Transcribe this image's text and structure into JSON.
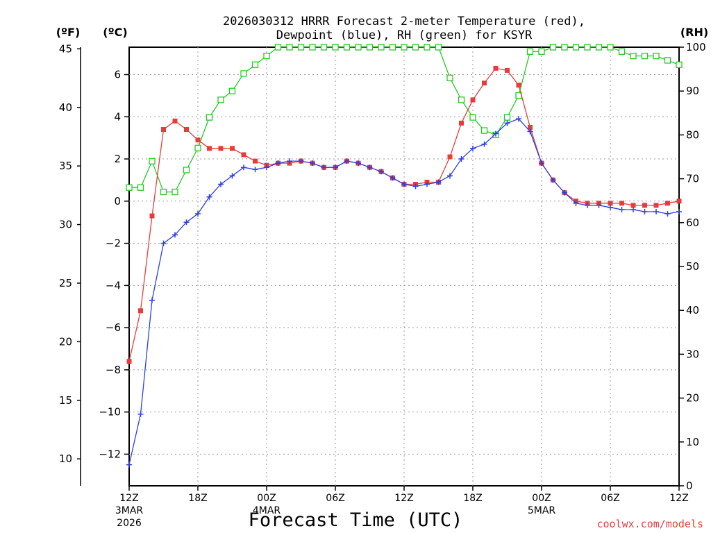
{
  "chart_data": {
    "type": "line",
    "title_line1": "2026030312 HRRR Forecast 2-meter Temperature (red),",
    "title_line2": "Dewpoint (blue), RH (green) for KSYR",
    "xlabel": "Forecast Time (UTC)",
    "credit": "coolwx.com/models",
    "unit_labels": {
      "fahrenheit": "(ºF)",
      "celsius": "(ºC)",
      "rh": "(RH)"
    },
    "x_ticks": [
      {
        "hour": 0,
        "label": "12Z",
        "sub1": "3MAR",
        "sub2": "2026"
      },
      {
        "hour": 6,
        "label": "18Z"
      },
      {
        "hour": 12,
        "label": "00Z",
        "sub1": "4MAR"
      },
      {
        "hour": 18,
        "label": "06Z"
      },
      {
        "hour": 24,
        "label": "12Z"
      },
      {
        "hour": 30,
        "label": "18Z"
      },
      {
        "hour": 36,
        "label": "00Z",
        "sub1": "5MAR"
      },
      {
        "hour": 42,
        "label": "06Z"
      },
      {
        "hour": 48,
        "label": "12Z"
      }
    ],
    "xlim": [
      0,
      48
    ],
    "celsius_axis": {
      "min": -13.5,
      "max": 7.3,
      "ticks": [
        -12,
        -10,
        -8,
        -6,
        -4,
        -2,
        0,
        2,
        4,
        6
      ]
    },
    "fahrenheit_axis": {
      "ticks": [
        10,
        15,
        20,
        25,
        30,
        35,
        40,
        45
      ]
    },
    "rh_axis": {
      "min": 0,
      "max": 100,
      "ticks": [
        0,
        10,
        20,
        30,
        40,
        50,
        60,
        70,
        80,
        90,
        100
      ]
    },
    "hours": [
      0,
      1,
      2,
      3,
      4,
      5,
      6,
      7,
      8,
      9,
      10,
      11,
      12,
      13,
      14,
      15,
      16,
      17,
      18,
      19,
      20,
      21,
      22,
      23,
      24,
      25,
      26,
      27,
      28,
      29,
      30,
      31,
      32,
      33,
      34,
      35,
      36,
      37,
      38,
      39,
      40,
      41,
      42,
      43,
      44,
      45,
      46,
      47,
      48
    ],
    "series": [
      {
        "key": "temperature",
        "color": "#e83c3c",
        "marker": "filled-square",
        "values": [
          -7.6,
          -5.2,
          -0.7,
          3.4,
          3.8,
          3.4,
          2.9,
          2.5,
          2.5,
          2.5,
          2.2,
          1.9,
          1.7,
          1.8,
          1.8,
          1.9,
          1.8,
          1.6,
          1.6,
          1.9,
          1.8,
          1.6,
          1.4,
          1.1,
          0.8,
          0.8,
          0.9,
          0.9,
          2.1,
          3.7,
          4.8,
          5.6,
          6.3,
          6.2,
          5.5,
          3.5,
          1.8,
          1.0,
          0.4,
          0.0,
          -0.1,
          -0.1,
          -0.1,
          -0.1,
          -0.2,
          -0.2,
          -0.2,
          -0.1,
          0.0
        ]
      },
      {
        "key": "dewpoint",
        "color": "#2b3ee6",
        "marker": "plus",
        "values": [
          -12.5,
          -10.1,
          -4.7,
          -2.0,
          -1.6,
          -1.0,
          -0.6,
          0.2,
          0.8,
          1.2,
          1.6,
          1.5,
          1.6,
          1.8,
          1.9,
          1.9,
          1.8,
          1.6,
          1.6,
          1.9,
          1.8,
          1.6,
          1.4,
          1.1,
          0.8,
          0.7,
          0.8,
          0.9,
          1.2,
          2.0,
          2.5,
          2.7,
          3.2,
          3.7,
          3.9,
          3.3,
          1.8,
          1.0,
          0.4,
          -0.1,
          -0.2,
          -0.2,
          -0.3,
          -0.4,
          -0.4,
          -0.5,
          -0.5,
          -0.6,
          -0.5
        ]
      },
      {
        "key": "rh",
        "color": "#22cc22",
        "marker": "open-square",
        "values": [
          68,
          68,
          74,
          67,
          67,
          72,
          77,
          84,
          88,
          90,
          94,
          96,
          98,
          100,
          100,
          100,
          100,
          100,
          100,
          100,
          100,
          100,
          100,
          100,
          100,
          100,
          100,
          100,
          93,
          88,
          84,
          81,
          80,
          84,
          89,
          99,
          99,
          100,
          100,
          100,
          100,
          100,
          100,
          99,
          98,
          98,
          98,
          97,
          96
        ]
      }
    ]
  }
}
